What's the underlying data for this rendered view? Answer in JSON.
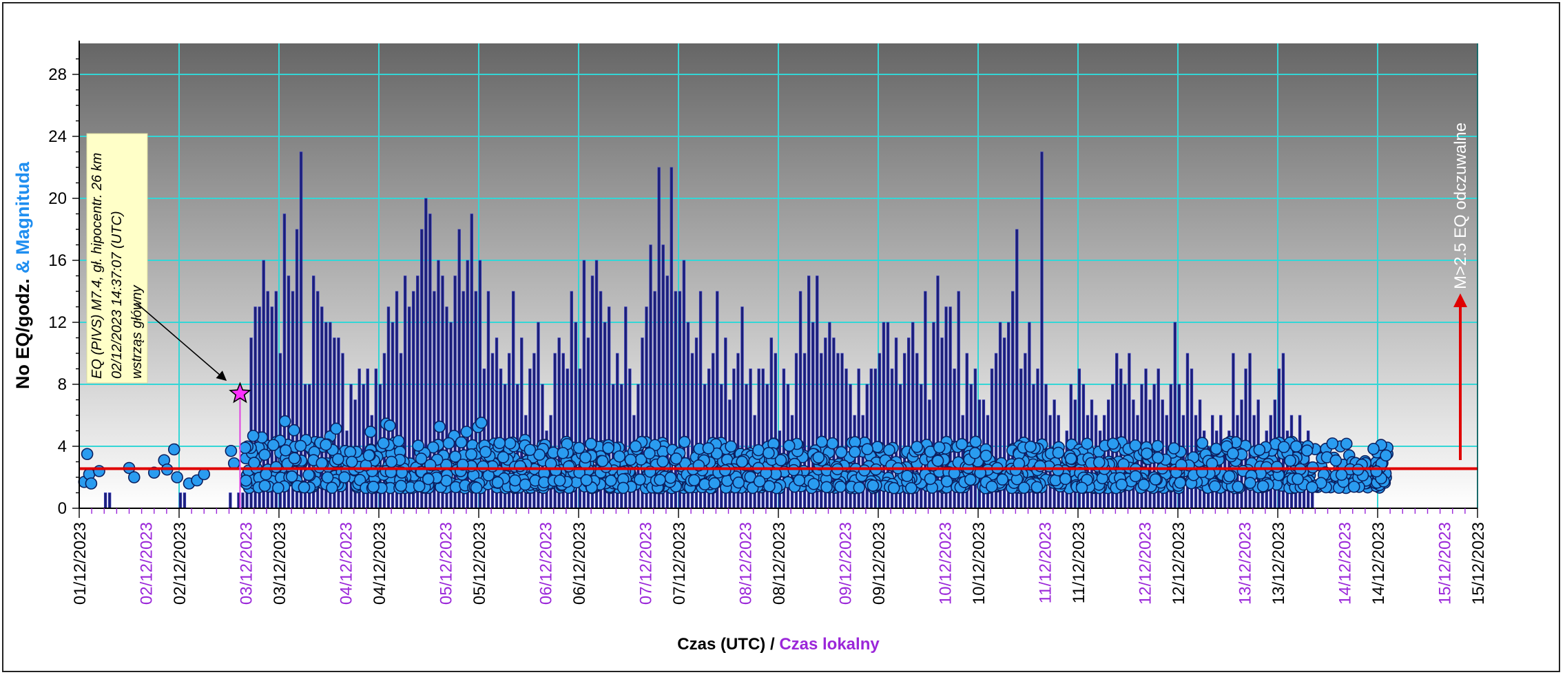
{
  "chart_data": {
    "type": "bar",
    "y_axis_label": {
      "part1": "No EQ/godz.",
      "part2": " & ",
      "part3": "Magnituda"
    },
    "x_axis_label": {
      "part1": "Czas (UTC)",
      "sep": " / ",
      "part2": "Czas lokalny"
    },
    "ylim": [
      0,
      30
    ],
    "yticks": [
      0,
      4,
      8,
      12,
      16,
      20,
      24,
      28
    ],
    "xlim_days": [
      0,
      14
    ],
    "x_ticks_utc": [
      "01/12/2023",
      "02/12/2023",
      "03/12/2023",
      "04/12/2023",
      "05/12/2023",
      "06/12/2023",
      "07/12/2023",
      "08/12/2023",
      "09/12/2023",
      "10/12/2023",
      "11/12/2023",
      "12/12/2023",
      "13/12/2023",
      "14/12/2023",
      "15/12/2023"
    ],
    "x_ticks_local": [
      "02/12/2023",
      "03/12/2023",
      "04/12/2023",
      "05/12/2023",
      "06/12/2023",
      "07/12/2023",
      "08/12/2023",
      "09/12/2023",
      "10/12/2023",
      "11/12/2023",
      "12/12/2023",
      "13/12/2023",
      "14/12/2023",
      "15/12/2023"
    ],
    "local_offset_hours": 8,
    "threshold_magnitude": 2.5,
    "threshold_label": "M>2.5 EQ odczuwalne",
    "mainshock": {
      "day": 1.61,
      "magnitude": 7.4
    },
    "annotation": {
      "line1": "EQ (PIVS) M7.4, gł. hipocentr. 26 km",
      "line2": "02/12/2023 14:37:07 (UTC)",
      "line3": "wstrząs główny"
    },
    "hourly_counts": [
      0,
      0,
      0,
      0,
      0,
      0,
      1,
      1,
      0,
      0,
      0,
      0,
      0,
      0,
      0,
      0,
      0,
      0,
      0,
      0,
      0,
      0,
      0,
      0,
      1,
      1,
      0,
      0,
      0,
      0,
      0,
      0,
      0,
      0,
      0,
      0,
      1,
      0,
      0,
      1,
      0,
      0,
      0,
      0,
      1,
      0,
      1,
      0,
      0,
      0,
      0,
      0,
      0,
      0,
      0,
      0,
      0,
      0,
      1,
      0,
      0,
      3,
      5,
      3,
      1,
      0,
      0,
      0,
      0,
      0,
      0,
      0,
      0,
      0,
      0,
      0,
      0,
      0,
      0,
      0,
      0,
      0,
      0,
      0,
      0,
      0,
      0,
      0,
      0,
      0,
      0,
      0,
      0,
      0,
      0,
      0,
      0,
      0,
      0,
      0,
      0,
      0,
      0,
      0,
      0,
      0,
      0,
      0,
      0,
      0,
      0,
      0,
      0,
      0,
      0,
      0,
      0,
      0,
      0,
      0,
      0,
      0,
      0,
      0,
      0,
      0,
      0,
      0,
      0,
      0,
      0,
      0,
      0,
      0,
      0,
      0,
      0,
      0,
      0,
      0,
      0,
      0,
      0,
      0,
      0,
      0,
      0,
      0,
      0,
      0,
      0,
      0,
      0,
      0,
      0,
      0,
      0,
      0,
      0,
      0,
      0,
      0,
      0,
      0,
      0,
      0,
      0,
      0,
      0,
      0,
      0,
      0,
      0,
      0,
      0,
      0,
      0,
      0,
      0,
      0,
      0,
      0,
      0,
      0,
      0,
      0,
      0,
      0,
      0,
      0,
      0,
      0,
      0,
      0,
      0,
      0,
      0,
      0,
      0,
      0,
      0,
      0,
      0,
      0,
      0,
      0,
      0,
      0,
      0,
      0,
      0,
      0,
      0,
      0,
      0,
      0,
      0,
      0,
      0,
      0,
      0,
      0,
      0,
      0,
      0,
      0,
      0,
      0,
      0,
      0,
      0,
      0,
      0,
      0,
      0,
      0,
      0,
      0,
      0,
      0,
      0,
      0,
      0,
      0,
      0,
      0,
      0,
      0,
      0,
      0,
      0,
      0,
      0,
      0,
      0,
      0,
      0,
      0,
      0,
      0,
      0,
      0,
      0,
      0,
      0,
      0,
      0,
      0,
      0,
      0,
      0,
      0,
      0,
      0,
      0,
      0,
      0,
      0,
      0,
      0,
      0,
      0,
      0,
      0,
      0,
      0,
      0,
      0,
      0,
      0,
      0,
      0,
      0,
      0,
      0,
      0,
      0,
      0,
      0,
      0,
      0,
      0,
      0,
      0,
      0,
      0,
      0,
      0,
      0,
      0,
      0,
      0,
      0,
      0,
      0,
      0,
      0,
      0,
      0,
      0,
      0,
      0,
      0,
      0,
      0,
      0,
      0,
      0,
      0,
      0,
      0,
      0,
      0,
      0,
      0,
      0,
      0,
      0,
      0,
      0,
      0,
      0,
      0,
      0,
      0,
      0,
      0,
      0,
      0,
      0,
      0,
      0,
      0,
      0,
      0,
      0,
      0
    ],
    "hourly_counts_note": "",
    "counts_after_mainshock": [
      1,
      1,
      2,
      11,
      13,
      13,
      16,
      14,
      13,
      14,
      10,
      19,
      15,
      14,
      18,
      23,
      8,
      8,
      15,
      14,
      13,
      12,
      12,
      11,
      11,
      10,
      5,
      8,
      7,
      9,
      8,
      9,
      6,
      9,
      8,
      10,
      13,
      12,
      14,
      10,
      15,
      13,
      14,
      15,
      18,
      20,
      19,
      14,
      16,
      15,
      13,
      12,
      15,
      18,
      14,
      16,
      19,
      14,
      16,
      9,
      14,
      10,
      11,
      9,
      8,
      10,
      14,
      8,
      11,
      6,
      9,
      10,
      12,
      8,
      5,
      6,
      10,
      11,
      10,
      9,
      14,
      12,
      9,
      16,
      11,
      15,
      16,
      14,
      12,
      13,
      8,
      10,
      8,
      13,
      9,
      6,
      8,
      11,
      13,
      17,
      14,
      22,
      17,
      15,
      22,
      14,
      14,
      16,
      12,
      10,
      11,
      14,
      8,
      9,
      10,
      14,
      8,
      11,
      7,
      9,
      10,
      13,
      8,
      9,
      6,
      9,
      9,
      8,
      11,
      10,
      5,
      9,
      8,
      6,
      10,
      14,
      10,
      15,
      12,
      15,
      10,
      11,
      12,
      11,
      10,
      10,
      9,
      8,
      6,
      9,
      6,
      8,
      9,
      9,
      10,
      12,
      12,
      9,
      11,
      8,
      10,
      11,
      12,
      10,
      8,
      14,
      7,
      12,
      15,
      11,
      13,
      13,
      9,
      14,
      6,
      10,
      8,
      9,
      7,
      7,
      6,
      9,
      10,
      12,
      11,
      12,
      14,
      18,
      9,
      10,
      12,
      8,
      9,
      23,
      8,
      6,
      7,
      6,
      4,
      5,
      8,
      7,
      9,
      8,
      6,
      7,
      6,
      5,
      6,
      7,
      8,
      10,
      9,
      8,
      10,
      7,
      6,
      8,
      9,
      7,
      8,
      9,
      7,
      6,
      8,
      12,
      8,
      6,
      10,
      9,
      6,
      7,
      5,
      4,
      6,
      5,
      6,
      4,
      5,
      10,
      6,
      7,
      9,
      10,
      6,
      7,
      4,
      5,
      6,
      7,
      9,
      10,
      5,
      6,
      4,
      6,
      3,
      5,
      3
    ]
  }
}
